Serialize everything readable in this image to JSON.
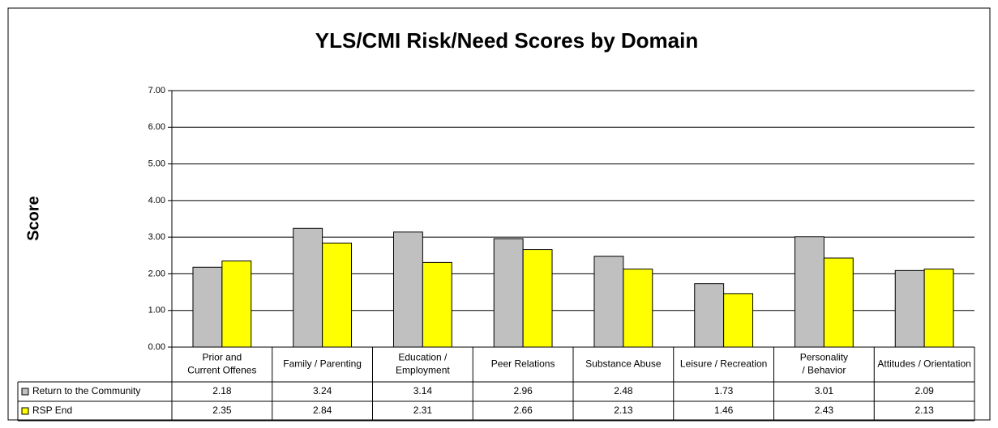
{
  "chart_data": {
    "type": "bar",
    "title": "YLS/CMI Risk/Need Scores by Domain",
    "y_label": "Score",
    "categories": [
      "Prior and Current Offenes",
      "Family / Parenting",
      "Education / Employment",
      "Peer Relations",
      "Substance Abuse",
      "Leisure / Recreation",
      "Personality / Behavior",
      "Attitudes / Orientation"
    ],
    "series": [
      {
        "name": "Return to the Community",
        "color": "#c0c0c0",
        "values": [
          2.18,
          3.24,
          3.14,
          2.96,
          2.48,
          1.73,
          3.01,
          2.09
        ]
      },
      {
        "name": "RSP End",
        "color": "#ffff00",
        "values": [
          2.35,
          2.84,
          2.31,
          2.66,
          2.13,
          1.46,
          2.43,
          2.13
        ]
      }
    ],
    "ylim": [
      0,
      7
    ],
    "yticks": [
      {
        "value": 0,
        "label": "0.00"
      },
      {
        "value": 1,
        "label": "1.00"
      },
      {
        "value": 2,
        "label": "2.00"
      },
      {
        "value": 3,
        "label": "3.00"
      },
      {
        "value": 4,
        "label": "4.00"
      },
      {
        "value": 5,
        "label": "5.00"
      },
      {
        "value": 6,
        "label": "6.00"
      },
      {
        "value": 7,
        "label": "7.00"
      }
    ],
    "grid": true
  }
}
